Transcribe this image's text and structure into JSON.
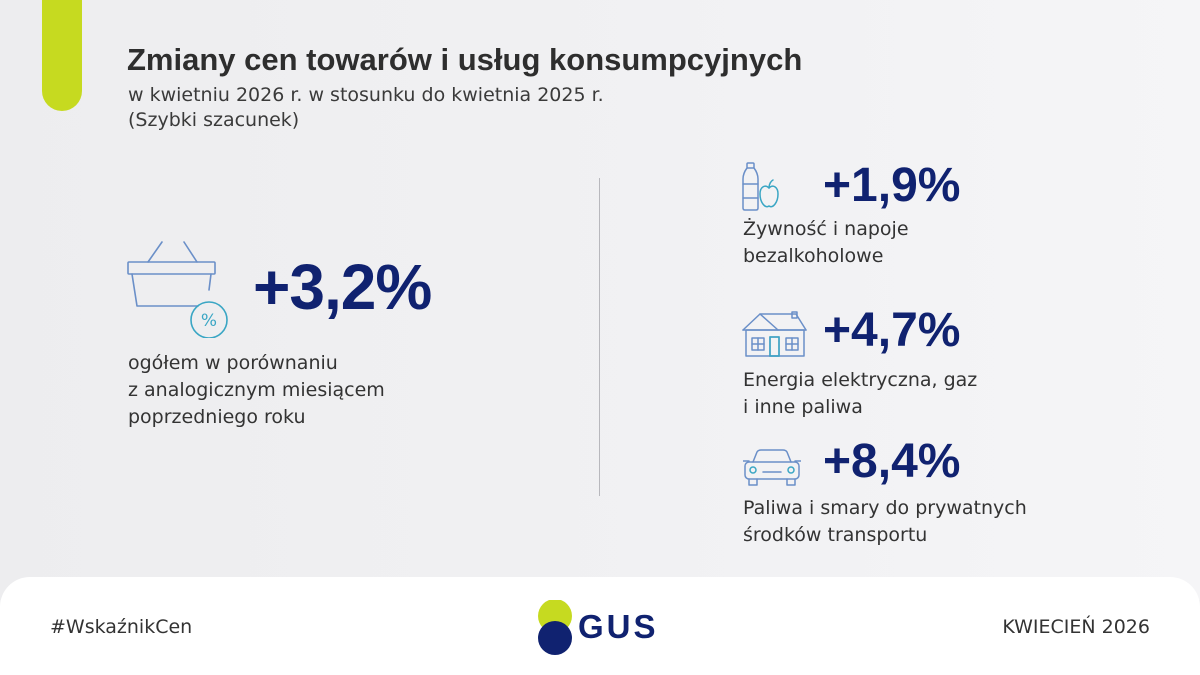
{
  "header": {
    "title": "Zmiany cen towarów i usług konsumpcyjnych",
    "subtitle_line1": "w kwietniu 2026 r. w stosunku do kwietnia 2025 r.",
    "subtitle_line2": "(Szybki szacunek)"
  },
  "main": {
    "value": "+3,2%",
    "desc_line1": "ogółem w porównaniu",
    "desc_line2": "z analogicznym miesiącem",
    "desc_line3": "poprzedniego roku",
    "icon": "shopping-basket-percent-icon",
    "icon_symbol": "%"
  },
  "categories": [
    {
      "value": "+1,9%",
      "line1": "Żywność i napoje",
      "line2": "bezalkoholowe",
      "icon": "bottle-apple-icon"
    },
    {
      "value": "+4,7%",
      "line1": "Energia elektryczna, gaz",
      "line2": "i inne paliwa",
      "icon": "house-icon"
    },
    {
      "value": "+8,4%",
      "line1": "Paliwa i smary do prywatnych",
      "line2": "środków transportu",
      "icon": "car-icon"
    }
  ],
  "footer": {
    "hashtag": "#WskaźnikCen",
    "date": "KWIECIEŃ 2026",
    "logo_text": "GUS"
  },
  "colors": {
    "accent": "#c6da20",
    "navy": "#102270",
    "icon_blue": "#6a8fc8",
    "icon_teal": "#3aa6c4"
  }
}
